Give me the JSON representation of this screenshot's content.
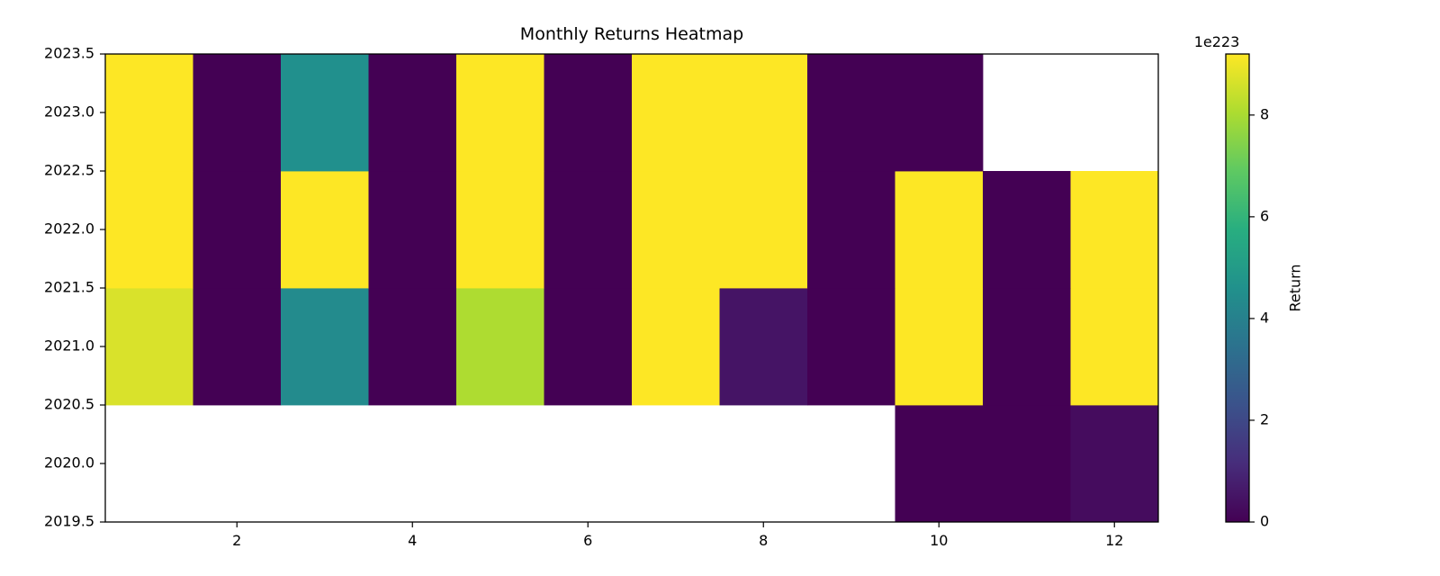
{
  "chart_data": {
    "type": "heatmap",
    "title": "Monthly Returns Heatmap",
    "xlabel": "",
    "ylabel": "",
    "x_ticks": [
      2,
      4,
      6,
      8,
      10,
      12
    ],
    "x_tick_labels": [
      "2",
      "4",
      "6",
      "8",
      "10",
      "12"
    ],
    "xlim": [
      0.5,
      12.5
    ],
    "y_ticks": [
      2019.5,
      2020.0,
      2020.5,
      2021.0,
      2021.5,
      2022.0,
      2022.5,
      2023.0,
      2023.5
    ],
    "y_tick_labels": [
      "2019.5",
      "2020.0",
      "2020.5",
      "2021.0",
      "2021.5",
      "2022.0",
      "2022.5",
      "2023.0",
      "2023.5"
    ],
    "ylim": [
      2019.5,
      2023.5
    ],
    "months": [
      1,
      2,
      3,
      4,
      5,
      6,
      7,
      8,
      9,
      10,
      11,
      12
    ],
    "years": [
      2020,
      2021,
      2022,
      2023
    ],
    "values": [
      [
        null,
        null,
        null,
        null,
        null,
        null,
        null,
        null,
        null,
        0.0,
        0.0,
        0.3
      ],
      [
        8.7,
        0.0,
        4.4,
        0.0,
        8.1,
        0.0,
        9.2,
        0.5,
        0.0,
        9.2,
        0.0,
        9.2
      ],
      [
        9.2,
        0.0,
        9.2,
        0.0,
        9.2,
        0.0,
        9.2,
        9.2,
        0.0,
        9.2,
        0.0,
        9.2
      ],
      [
        9.2,
        0.0,
        4.6,
        0.0,
        9.2,
        0.0,
        9.2,
        9.2,
        0.0,
        0.0,
        null,
        null
      ]
    ],
    "colormap": "viridis",
    "colorbar": {
      "label": "Return",
      "range": [
        0,
        9.2
      ],
      "ticks": [
        0,
        2,
        4,
        6,
        8
      ],
      "tick_labels": [
        "0",
        "2",
        "4",
        "6",
        "8"
      ],
      "offset_text": "1e223"
    }
  }
}
